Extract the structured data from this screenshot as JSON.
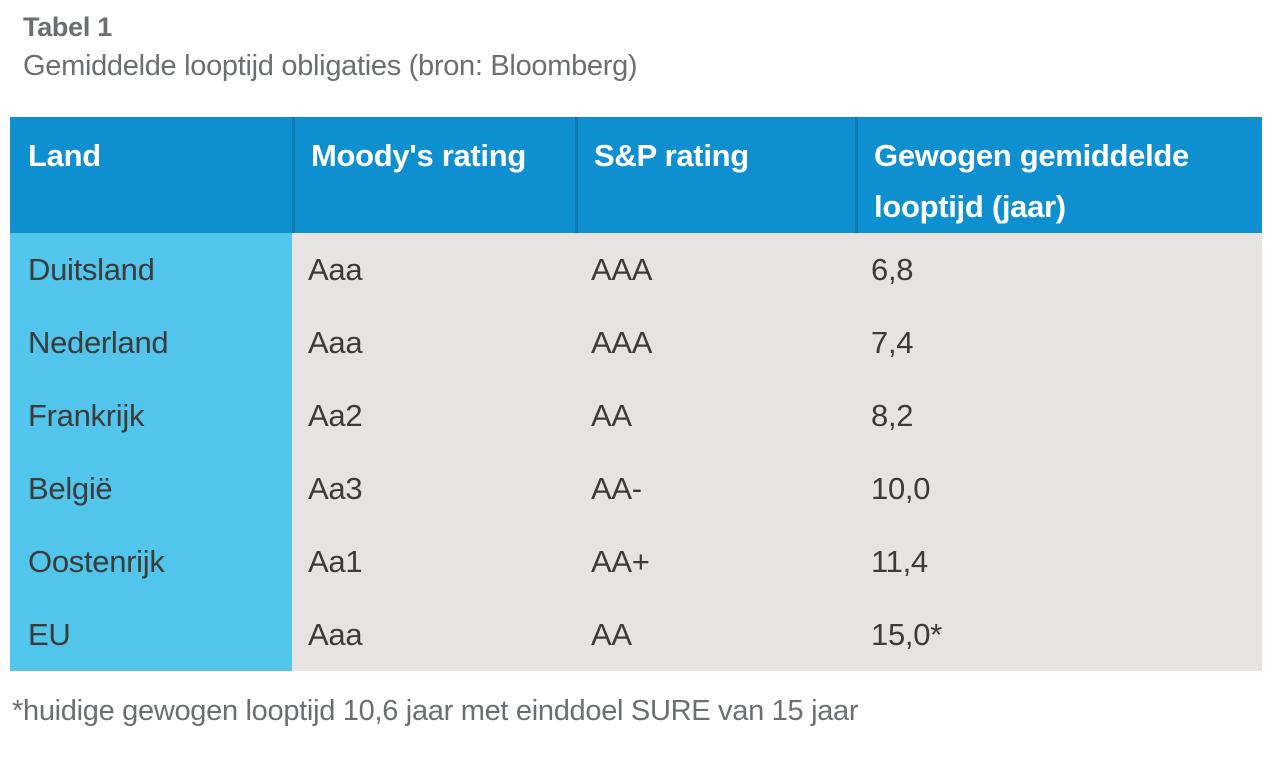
{
  "caption": {
    "label": "Tabel 1",
    "title": "Gemiddelde looptijd obligaties (bron: Bloomberg)"
  },
  "table": {
    "columns": [
      "Land",
      "Moody's rating",
      "S&P rating",
      "Gewogen gemiddelde looptijd (jaar)"
    ],
    "rows": [
      [
        "Duitsland",
        "Aaa",
        "AAA",
        "6,8"
      ],
      [
        "Nederland",
        "Aaa",
        "AAA",
        "7,4"
      ],
      [
        "Frankrijk",
        "Aa2",
        "AA",
        "8,2"
      ],
      [
        "België",
        "Aa3",
        "AA-",
        "10,0"
      ],
      [
        "Oostenrijk",
        "Aa1",
        "AA+",
        "11,4"
      ],
      [
        "EU",
        "Aaa",
        "AA",
        "15,0*"
      ]
    ]
  },
  "footnote": "*huidige gewogen looptijd 10,6 jaar met einddoel SURE van 15 jaar",
  "colors": {
    "header_blue": "#0e8fd0",
    "land_blue": "#52c5ec",
    "body_gray": "#e5e4e2",
    "divider_blue": "#0b79b3",
    "header_text": "#ffffff",
    "body_text": "#3b3b3a",
    "caption_text": "#6c6f72"
  }
}
